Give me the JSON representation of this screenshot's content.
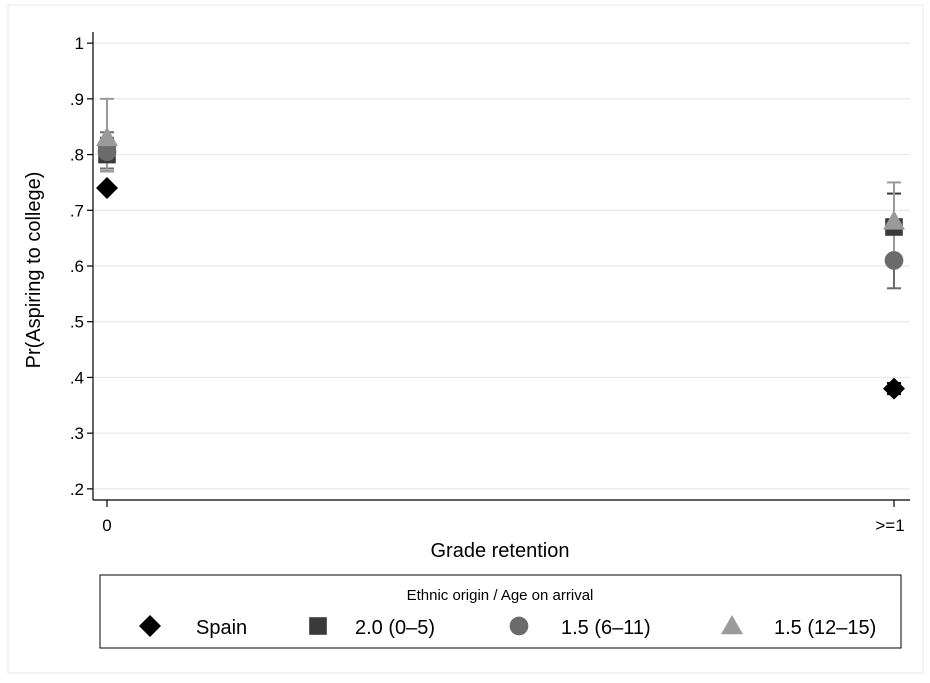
{
  "chart_data": {
    "type": "scatter",
    "xlabel": "Grade retention",
    "ylabel": "Pr(Aspiring to college)",
    "categories": [
      "0",
      ">=1"
    ],
    "ylim": [
      0.18,
      1.02
    ],
    "yticks": [
      0.2,
      0.3,
      0.4,
      0.5,
      0.6,
      0.7,
      0.8,
      0.9,
      1.0
    ],
    "ytick_labels": [
      ".2",
      ".3",
      ".4",
      ".5",
      ".6",
      ".7",
      ".8",
      ".9",
      "1"
    ],
    "grid": true,
    "legend": {
      "title": "Ethnic origin / Age on arrival",
      "position": "bottom"
    },
    "series": [
      {
        "name": "Spain",
        "marker": "diamond",
        "color": "#000000",
        "values": [
          0.74,
          0.38
        ],
        "ci_low": [
          null,
          0.37
        ],
        "ci_high": [
          null,
          0.39
        ]
      },
      {
        "name": "2.0 (0–5)",
        "marker": "square",
        "color": "#3a3a3a",
        "values": [
          0.8,
          0.67
        ],
        "ci_low": [
          0.77,
          0.66
        ],
        "ci_high": [
          0.83,
          0.73
        ]
      },
      {
        "name": "1.5 (6–11)",
        "marker": "circle",
        "color": "#6b6b6b",
        "values": [
          0.805,
          0.61
        ],
        "ci_low": [
          0.775,
          0.56
        ],
        "ci_high": [
          0.84,
          0.66
        ]
      },
      {
        "name": "1.5 (12–15)",
        "marker": "triangle",
        "color": "#9a9a9a",
        "values": [
          0.83,
          0.68
        ],
        "ci_low": [
          0.77,
          0.61
        ],
        "ci_high": [
          0.9,
          0.75
        ]
      }
    ]
  }
}
